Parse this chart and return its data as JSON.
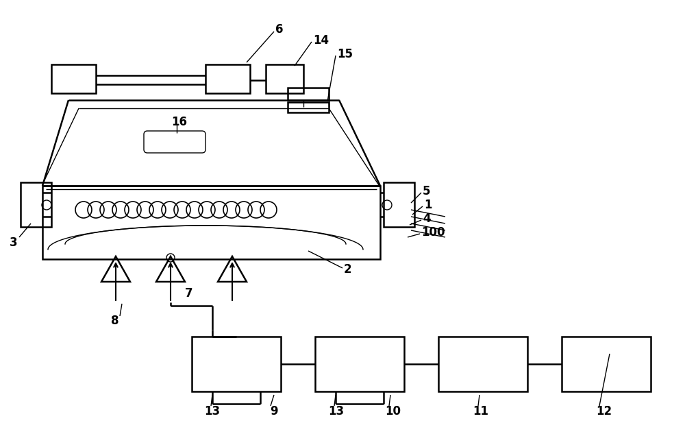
{
  "bg_color": "#ffffff",
  "line_color": "#000000",
  "lw": 1.8,
  "tlw": 1.0,
  "fig_width": 10.0,
  "fig_height": 6.36,
  "dpi": 100
}
